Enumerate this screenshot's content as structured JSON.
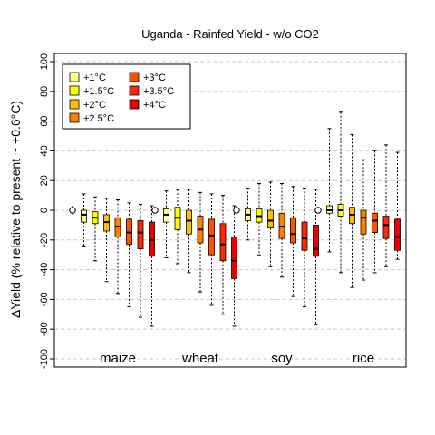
{
  "chart_data": {
    "type": "boxplot",
    "title": "Uganda - Rainfed Yield - w/o CO2",
    "ylabel": "ΔYield (% relative to present ~ +0.6°C)",
    "ylim": [
      -100,
      100
    ],
    "yticks": [
      -100,
      -80,
      -60,
      -40,
      -20,
      0,
      20,
      40,
      60,
      80,
      100
    ],
    "grid": "horizontal dashed",
    "legend_position": "top-left",
    "legend": [
      {
        "label": "+1°C",
        "color": "#ffff80"
      },
      {
        "label": "+1.5°C",
        "color": "#ffff00"
      },
      {
        "label": "+2°C",
        "color": "#ffbf00"
      },
      {
        "label": "+2.5°C",
        "color": "#ff8000"
      },
      {
        "label": "+3°C",
        "color": "#ff5000"
      },
      {
        "label": "+3.5°C",
        "color": "#ff2800"
      },
      {
        "label": "+4°C",
        "color": "#ee0000"
      }
    ],
    "groups": [
      {
        "crop": "maize",
        "baseline": {
          "median": 0.0,
          "q1": -2,
          "q3": 1,
          "low": -3,
          "high": 3
        },
        "boxes": [
          {
            "level": "+1°C",
            "min": -24,
            "q1": -8,
            "median": -3,
            "q3": 0,
            "max": 11
          },
          {
            "level": "+1.5°C",
            "min": -34,
            "q1": -9,
            "median": -5,
            "q3": -1,
            "max": 9
          },
          {
            "level": "+2°C",
            "min": -48,
            "q1": -14,
            "median": -8,
            "q3": -3,
            "max": 8
          },
          {
            "level": "+2.5°C",
            "min": -56,
            "q1": -18,
            "median": -11,
            "q3": -5,
            "max": 7
          },
          {
            "level": "+3°C",
            "min": -65,
            "q1": -23,
            "median": -15,
            "q3": -6,
            "max": 5
          },
          {
            "level": "+3.5°C",
            "min": -72,
            "q1": -26,
            "median": -15,
            "q3": -7,
            "max": 4
          },
          {
            "level": "+4°C",
            "min": -78,
            "q1": -31,
            "median": -20,
            "q3": -8,
            "max": 3
          }
        ]
      },
      {
        "crop": "wheat",
        "baseline": {
          "median": 0.0,
          "q1": -1,
          "q3": 1,
          "low": -2,
          "high": 2
        },
        "boxes": [
          {
            "level": "+1°C",
            "min": -32,
            "q1": -8,
            "median": -3,
            "q3": 1,
            "max": 13
          },
          {
            "level": "+1.5°C",
            "min": -36,
            "q1": -13,
            "median": -5,
            "q3": 2,
            "max": 14
          },
          {
            "level": "+2°C",
            "min": -42,
            "q1": -16,
            "median": -7,
            "q3": 0,
            "max": 14
          },
          {
            "level": "+2.5°C",
            "min": -55,
            "q1": -22,
            "median": -13,
            "q3": -4,
            "max": 12
          },
          {
            "level": "+3°C",
            "min": -64,
            "q1": -30,
            "median": -17,
            "q3": -6,
            "max": 11
          },
          {
            "level": "+3.5°C",
            "min": -70,
            "q1": -34,
            "median": -23,
            "q3": -9,
            "max": 10
          },
          {
            "level": "+4°C",
            "min": -78,
            "q1": -46,
            "median": -34,
            "q3": -18,
            "max": 3
          }
        ]
      },
      {
        "crop": "soy",
        "baseline": {
          "median": 0.0,
          "q1": -1,
          "q3": 1,
          "low": -2,
          "high": 2
        },
        "boxes": [
          {
            "level": "+1°C",
            "min": -20,
            "q1": -7,
            "median": -3,
            "q3": 1,
            "max": 15
          },
          {
            "level": "+1.5°C",
            "min": -30,
            "q1": -8,
            "median": -4,
            "q3": 1,
            "max": 18
          },
          {
            "level": "+2°C",
            "min": -38,
            "q1": -12,
            "median": -7,
            "q3": 0,
            "max": 19
          },
          {
            "level": "+2.5°C",
            "min": -45,
            "q1": -19,
            "median": -11,
            "q3": -2,
            "max": 18
          },
          {
            "level": "+3°C",
            "min": -58,
            "q1": -22,
            "median": -16,
            "q3": -5,
            "max": 16
          },
          {
            "level": "+3.5°C",
            "min": -65,
            "q1": -27,
            "median": -19,
            "q3": -8,
            "max": 15
          },
          {
            "level": "+4°C",
            "min": -77,
            "q1": -31,
            "median": -26,
            "q3": -10,
            "max": 14
          }
        ]
      },
      {
        "crop": "rice",
        "baseline": {
          "median": 0.0,
          "q1": -1,
          "q3": 1,
          "low": -2,
          "high": 2
        },
        "boxes": [
          {
            "level": "+1°C",
            "min": -28,
            "q1": -2,
            "median": 0,
            "q3": 3,
            "max": 55
          },
          {
            "level": "+1.5°C",
            "min": -42,
            "q1": -4,
            "median": 0,
            "q3": 4,
            "max": 66
          },
          {
            "level": "+2°C",
            "min": -52,
            "q1": -9,
            "median": -3,
            "q3": 2,
            "max": 51
          },
          {
            "level": "+2.5°C",
            "min": -47,
            "q1": -16,
            "median": -5,
            "q3": 0,
            "max": 34
          },
          {
            "level": "+3°C",
            "min": -42,
            "q1": -15,
            "median": -7,
            "q3": -2,
            "max": 40
          },
          {
            "level": "+3.5°C",
            "min": -38,
            "q1": -19,
            "median": -10,
            "q3": -4,
            "max": 44
          },
          {
            "level": "+4°C",
            "min": -33,
            "q1": -27,
            "median": -18,
            "q3": -6,
            "max": 39
          }
        ]
      }
    ],
    "colors": {
      "grid": "#c8c8c8",
      "axis": "#000000",
      "baseline_marker_fill": "#ffffff"
    }
  }
}
